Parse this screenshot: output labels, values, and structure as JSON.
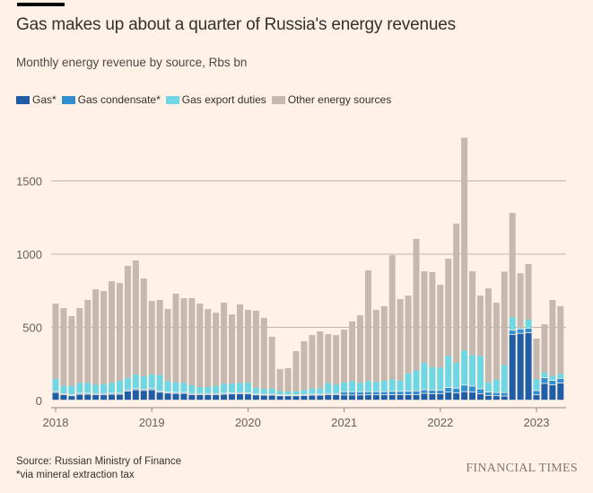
{
  "header": {
    "title": "Gas makes up about a quarter of Russia's energy revenues",
    "subtitle": "Monthly energy revenue by source, Rbs bn"
  },
  "legend": [
    {
      "label": "Gas*",
      "color": "#1f5ea6"
    },
    {
      "label": "Gas condensate*",
      "color": "#2f8fd0"
    },
    {
      "label": "Gas export duties",
      "color": "#6fd6e3"
    },
    {
      "label": "Other energy sources",
      "color": "#c5b9af"
    }
  ],
  "footer": {
    "source": "Source: Russian Ministry of Finance",
    "note": "*via mineral extraction tax",
    "brand": "FINANCIAL TIMES"
  },
  "chart_data": {
    "type": "bar",
    "stacked": true,
    "title": "Gas makes up about a quarter of Russia's energy revenues",
    "subtitle": "Monthly energy revenue by source, Rbs bn",
    "xlabel": "",
    "ylabel": "Rbs bn",
    "ylim": [
      0,
      1800
    ],
    "yticks": [
      0,
      500,
      1000,
      1500
    ],
    "xticks": [
      "2018",
      "2019",
      "2020",
      "2021",
      "2022",
      "2023"
    ],
    "grid": true,
    "legend_position": "top-left",
    "categories": [
      "2018-01",
      "2018-02",
      "2018-03",
      "2018-04",
      "2018-05",
      "2018-06",
      "2018-07",
      "2018-08",
      "2018-09",
      "2018-10",
      "2018-11",
      "2018-12",
      "2019-01",
      "2019-02",
      "2019-03",
      "2019-04",
      "2019-05",
      "2019-06",
      "2019-07",
      "2019-08",
      "2019-09",
      "2019-10",
      "2019-11",
      "2019-12",
      "2020-01",
      "2020-02",
      "2020-03",
      "2020-04",
      "2020-05",
      "2020-06",
      "2020-07",
      "2020-08",
      "2020-09",
      "2020-10",
      "2020-11",
      "2020-12",
      "2021-01",
      "2021-02",
      "2021-03",
      "2021-04",
      "2021-05",
      "2021-06",
      "2021-07",
      "2021-08",
      "2021-09",
      "2021-10",
      "2021-11",
      "2021-12",
      "2022-01",
      "2022-02",
      "2022-03",
      "2022-04",
      "2022-05",
      "2022-06",
      "2022-07",
      "2022-08",
      "2022-09",
      "2022-10",
      "2022-11",
      "2022-12",
      "2023-01",
      "2023-02",
      "2023-03",
      "2023-04"
    ],
    "series": [
      {
        "name": "Gas*",
        "color": "#1f5ea6",
        "values": [
          52,
          38,
          30,
          40,
          40,
          38,
          38,
          40,
          40,
          62,
          70,
          66,
          70,
          54,
          48,
          46,
          46,
          38,
          38,
          38,
          38,
          40,
          42,
          44,
          42,
          36,
          34,
          34,
          30,
          30,
          30,
          32,
          34,
          34,
          38,
          38,
          35,
          35,
          35,
          36,
          36,
          36,
          37,
          37,
          37,
          38,
          46,
          44,
          44,
          55,
          50,
          58,
          55,
          44,
          32,
          30,
          28,
          449,
          456,
          460,
          36,
          114,
          104,
          117
        ]
      },
      {
        "name": "Gas condensate*",
        "color": "#2f8fd0",
        "values": [
          8,
          6,
          6,
          7,
          7,
          7,
          7,
          7,
          7,
          8,
          9,
          9,
          9,
          8,
          7,
          7,
          7,
          7,
          7,
          7,
          7,
          7,
          7,
          7,
          7,
          6,
          6,
          6,
          5,
          5,
          5,
          6,
          6,
          6,
          7,
          7,
          22,
          22,
          22,
          22,
          22,
          22,
          23,
          23,
          24,
          25,
          25,
          25,
          24,
          31,
          32,
          45,
          41,
          33,
          24,
          22,
          24,
          29,
          30,
          32,
          29,
          39,
          31,
          32
        ]
      },
      {
        "name": "Gas export duties",
        "color": "#6fd6e3",
        "values": [
          87,
          58,
          64,
          74,
          74,
          63,
          67,
          74,
          88,
          85,
          99,
          91,
          101,
          112,
          78,
          70,
          68,
          59,
          47,
          47,
          55,
          67,
          67,
          70,
          72,
          46,
          40,
          42,
          30,
          26,
          28,
          34,
          42,
          44,
          74,
          63,
          68,
          76,
          62,
          75,
          69,
          77,
          85,
          77,
          125,
          143,
          186,
          160,
          156,
          219,
          176,
          237,
          213,
          228,
          67,
          91,
          191,
          90,
          10,
          60,
          80,
          39,
          33,
          33
        ]
      },
      {
        "name": "Other energy sources",
        "color": "#c5b9af",
        "values": [
          515,
          529,
          476,
          510,
          566,
          652,
          636,
          694,
          668,
          765,
          778,
          668,
          500,
          513,
          492,
          607,
          578,
          595,
          570,
          533,
          500,
          554,
          472,
          535,
          498,
          525,
          484,
          353,
          150,
          160,
          274,
          333,
          365,
          388,
          334,
          339,
          359,
          407,
          463,
          756,
          492,
          509,
          848,
          556,
          531,
          898,
          626,
          648,
          567,
          664,
          950,
          1456,
          574,
          412,
          643,
          525,
          638,
          713,
          374,
          380,
          278,
          329,
          519,
          462
        ]
      }
    ],
    "totals": [
      662,
      631,
      576,
      631,
      687,
      760,
      748,
      815,
      803,
      920,
      956,
      834,
      680,
      687,
      625,
      730,
      699,
      699,
      662,
      625,
      600,
      668,
      588,
      656,
      619,
      613,
      564,
      435,
      215,
      221,
      337,
      405,
      447,
      472,
      453,
      447,
      484,
      540,
      582,
      889,
      619,
      644,
      993,
      693,
      717,
      1104,
      883,
      877,
      791,
      969,
      1208,
      1796,
      883,
      717,
      766,
      668,
      687,
      1281,
      870,
      932,
      423,
      521,
      687,
      644
    ]
  }
}
